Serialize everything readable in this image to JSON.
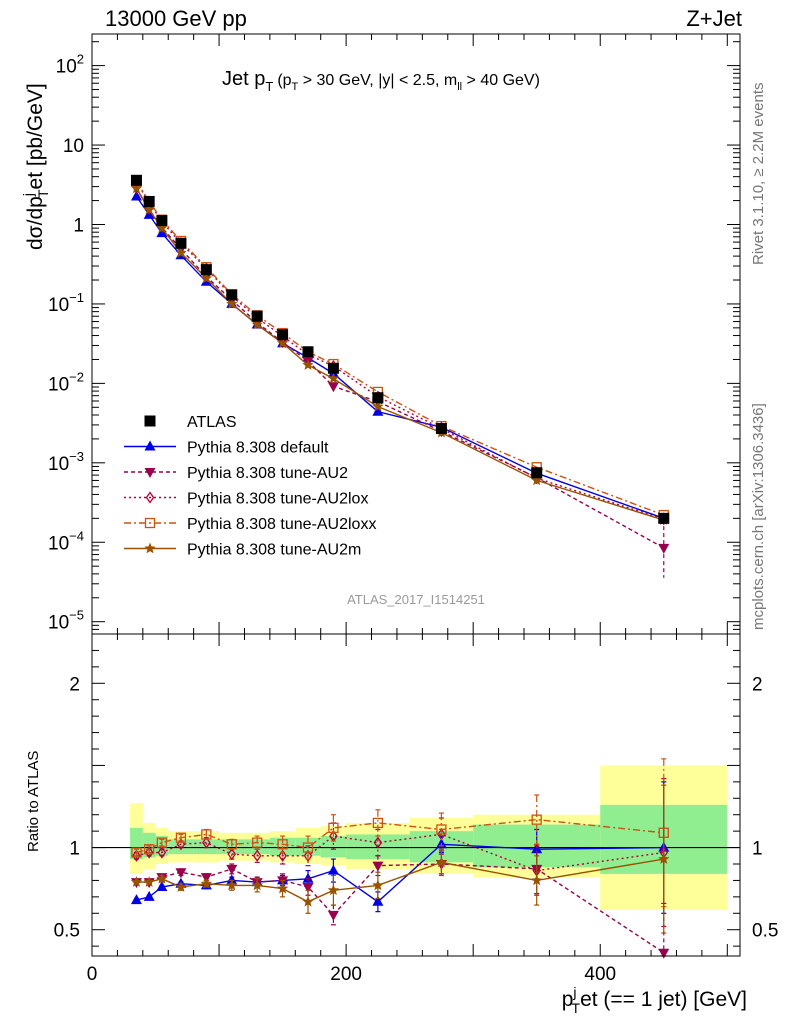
{
  "header": {
    "left": "13000 GeV pp",
    "right": "Z+Jet"
  },
  "side_labels": {
    "rivet": "Rivet 3.1.10, ≥ 2.2M events",
    "mcplots": "mcplots.cern.ch [arXiv:1306.3436]"
  },
  "chart_data": {
    "type": "line",
    "title": "Jet p_T (p_T > 30 GeV, |y| < 2.5, m_ll > 40 GeV)",
    "title_parts": {
      "main": "Jet p",
      "main_sub": "T",
      "cut1": "(p",
      "cut1_sub": "T",
      "cut2": " > 30 GeV, |y| < 2.5, m",
      "cut2_sub": "ll",
      "cut3": " > 40 GeV)"
    },
    "watermark": "ATLAS_2017_I1514251",
    "xlabel": "p_T^j et (== 1 jet) [GeV]",
    "xlabel_parts": {
      "a": "p",
      "sup": "j",
      "sub": "T",
      "b": "et (== 1 jet) [GeV]"
    },
    "ylabel": "dσ/dp_T^j et [pb/GeV]",
    "ylabel_parts": {
      "a": "dσ/dp",
      "sup": "j",
      "sub": "T",
      "b": "et [pb/GeV]"
    },
    "ratio_ylabel": "Ratio to ATLAS",
    "xlim": [
      0,
      510
    ],
    "ylim_log": [
      7e-06,
      250
    ],
    "ratio_ylim": [
      0.34,
      2.3
    ],
    "x_ticks": [
      0,
      200,
      400
    ],
    "y_ticks": [
      {
        "value": 100,
        "base": "10",
        "exp": "2"
      },
      {
        "value": 10,
        "base": "10",
        "exp": ""
      },
      {
        "value": 1,
        "base": "1",
        "exp": ""
      },
      {
        "value": 0.1,
        "base": "10",
        "exp": "−1"
      },
      {
        "value": 0.01,
        "base": "10",
        "exp": "−2"
      },
      {
        "value": 0.001,
        "base": "10",
        "exp": "−3"
      },
      {
        "value": 0.0001,
        "base": "10",
        "exp": "−4"
      },
      {
        "value": 1e-05,
        "base": "10",
        "exp": "−5"
      }
    ],
    "ratio_ticks": [
      {
        "value": 0.5,
        "label": "0.5"
      },
      {
        "value": 1,
        "label": "1"
      },
      {
        "value": 2,
        "label": "2"
      }
    ],
    "bin_edges": [
      30,
      40,
      50,
      60,
      80,
      100,
      120,
      140,
      160,
      180,
      200,
      250,
      300,
      400,
      500
    ],
    "x": [
      35,
      45,
      55,
      70,
      90,
      110,
      130,
      150,
      170,
      190,
      225,
      275,
      350,
      450
    ],
    "data": {
      "name": "ATLAS",
      "values": [
        3.6,
        1.95,
        1.12,
        0.58,
        0.27,
        0.13,
        0.07,
        0.041,
        0.025,
        0.0155,
        0.0066,
        0.0027,
        0.00075,
        0.0002
      ],
      "ratio_band_inner": [
        [
          0.93,
          1.12
        ],
        [
          0.94,
          1.09
        ],
        [
          0.95,
          1.07
        ],
        [
          0.96,
          1.05
        ],
        [
          0.96,
          1.05
        ],
        [
          0.96,
          1.05
        ],
        [
          0.96,
          1.05
        ],
        [
          0.95,
          1.06
        ],
        [
          0.95,
          1.06
        ],
        [
          0.94,
          1.07
        ],
        [
          0.93,
          1.08
        ],
        [
          0.91,
          1.1
        ],
        [
          0.88,
          1.14
        ],
        [
          0.84,
          1.26
        ]
      ],
      "ratio_band_outer": [
        [
          0.84,
          1.27
        ],
        [
          0.87,
          1.15
        ],
        [
          0.9,
          1.12
        ],
        [
          0.91,
          1.1
        ],
        [
          0.91,
          1.1
        ],
        [
          0.92,
          1.09
        ],
        [
          0.92,
          1.09
        ],
        [
          0.91,
          1.1
        ],
        [
          0.9,
          1.12
        ],
        [
          0.89,
          1.13
        ],
        [
          0.87,
          1.15
        ],
        [
          0.84,
          1.18
        ],
        [
          0.82,
          1.2
        ],
        [
          0.62,
          1.5
        ]
      ]
    },
    "series": [
      {
        "name": "Pythia 8.308 default",
        "marker": "triangle-up",
        "color": "#0000e6",
        "dash": "",
        "values": [
          2.25,
          1.32,
          0.78,
          0.41,
          0.19,
          0.1,
          0.055,
          0.032,
          0.021,
          0.0133,
          0.0044,
          0.0028,
          0.00074,
          0.0002
        ],
        "ratio": [
          0.68,
          0.7,
          0.76,
          0.78,
          0.77,
          0.8,
          0.79,
          0.8,
          0.81,
          0.86,
          0.67,
          1.02,
          0.99,
          1.0
        ],
        "ratio_err": [
          0.01,
          0.01,
          0.01,
          0.01,
          0.02,
          0.02,
          0.03,
          0.03,
          0.05,
          0.07,
          0.06,
          0.05,
          0.12,
          0.4
        ]
      },
      {
        "name": "Pythia 8.308 tune-AU2",
        "marker": "triangle-down",
        "color": "#99004d",
        "dash": "4,3",
        "values": [
          2.85,
          1.55,
          0.92,
          0.49,
          0.22,
          0.112,
          0.058,
          0.033,
          0.019,
          0.0092,
          0.0059,
          0.0025,
          0.00065,
          8.5e-05
        ],
        "ratio": [
          0.79,
          0.79,
          0.82,
          0.85,
          0.82,
          0.87,
          0.79,
          0.8,
          0.76,
          0.59,
          0.89,
          0.9,
          0.87,
          0.36
        ],
        "ratio_err": [
          0.01,
          0.01,
          0.01,
          0.02,
          0.02,
          0.03,
          0.03,
          0.04,
          0.05,
          0.06,
          0.06,
          0.06,
          0.15,
          0.3
        ]
      },
      {
        "name": "Pythia 8.308 tune-AU2lox",
        "marker": "diamond-open",
        "color": "#b3003b",
        "dash": "2,3",
        "values": [
          3.4,
          1.9,
          1.08,
          0.58,
          0.28,
          0.125,
          0.067,
          0.039,
          0.023,
          0.0165,
          0.0068,
          0.0027,
          0.00064,
          0.000195
        ],
        "ratio": [
          0.95,
          0.97,
          0.97,
          1.02,
          1.03,
          0.96,
          0.95,
          0.95,
          0.95,
          1.07,
          1.03,
          1.08,
          0.86,
          0.97
        ],
        "ratio_err": [
          0.02,
          0.02,
          0.02,
          0.02,
          0.03,
          0.03,
          0.04,
          0.05,
          0.06,
          0.08,
          0.08,
          0.1,
          0.15,
          0.45
        ]
      },
      {
        "name": "Pythia 8.308 tune-AU2loxx",
        "marker": "square-open",
        "color": "#cc5214",
        "dash": "7,3,2,3",
        "values": [
          3.5,
          1.95,
          1.15,
          0.62,
          0.29,
          0.132,
          0.072,
          0.043,
          0.025,
          0.0175,
          0.0078,
          0.0029,
          0.00088,
          0.00022
        ],
        "ratio": [
          0.97,
          0.99,
          1.03,
          1.06,
          1.08,
          1.02,
          1.03,
          1.02,
          1.0,
          1.12,
          1.15,
          1.11,
          1.17,
          1.09
        ],
        "ratio_err": [
          0.02,
          0.02,
          0.02,
          0.02,
          0.03,
          0.03,
          0.04,
          0.05,
          0.07,
          0.08,
          0.08,
          0.1,
          0.15,
          0.45
        ]
      },
      {
        "name": "Pythia 8.308 tune-AU2m",
        "marker": "star",
        "color": "#995200",
        "dash": "",
        "values": [
          2.85,
          1.53,
          0.9,
          0.44,
          0.21,
          0.1,
          0.055,
          0.032,
          0.017,
          0.0115,
          0.0051,
          0.0024,
          0.0006,
          0.00019
        ],
        "ratio": [
          0.79,
          0.79,
          0.81,
          0.76,
          0.78,
          0.77,
          0.77,
          0.75,
          0.67,
          0.74,
          0.77,
          0.91,
          0.8,
          0.93
        ],
        "ratio_err": [
          0.01,
          0.01,
          0.02,
          0.02,
          0.02,
          0.03,
          0.04,
          0.05,
          0.07,
          0.09,
          0.08,
          0.08,
          0.15,
          0.45
        ]
      }
    ],
    "colors": {
      "band_inner": "#90ee90",
      "band_outer": "#ffff99",
      "data_marker": "#000000"
    }
  }
}
